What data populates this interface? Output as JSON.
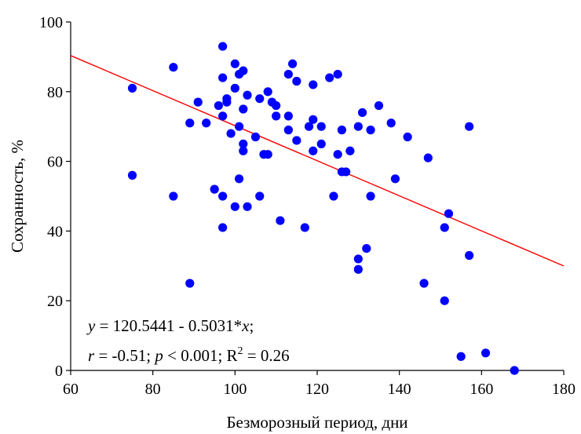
{
  "chart_data": {
    "type": "scatter",
    "xlabel": "Безморозный период, дни",
    "ylabel": "Сохранность, %",
    "xlim": [
      60,
      180
    ],
    "ylim": [
      0,
      100
    ],
    "xticks": [
      "60",
      "80",
      "100",
      "120",
      "140",
      "160",
      "180"
    ],
    "yticks": [
      "0",
      "20",
      "40",
      "60",
      "80",
      "100"
    ],
    "grid": false,
    "point_color": "#0000ff",
    "line_color": "#ff0000",
    "regression": {
      "intercept": 120.5441,
      "slope": -0.5031
    },
    "equation": {
      "line1": {
        "y": "y",
        "eq": " = 120.5441 - 0.5031*",
        "x": "x",
        "end": ";"
      },
      "line2": {
        "r": "r",
        "r_val": " = -0.51; ",
        "p": "p",
        "p_val": " < 0.001; R",
        "sup": "2",
        "r2_val": " = 0.26"
      }
    },
    "points": [
      [
        75,
        81
      ],
      [
        75,
        56
      ],
      [
        85,
        87
      ],
      [
        85,
        50
      ],
      [
        89,
        71
      ],
      [
        89,
        25
      ],
      [
        91,
        77
      ],
      [
        93,
        71
      ],
      [
        95,
        52
      ],
      [
        96,
        76
      ],
      [
        97,
        93
      ],
      [
        97,
        84
      ],
      [
        97,
        73
      ],
      [
        97,
        50
      ],
      [
        97,
        41
      ],
      [
        98,
        78
      ],
      [
        98,
        77
      ],
      [
        99,
        68
      ],
      [
        100,
        88
      ],
      [
        100,
        81
      ],
      [
        100,
        47
      ],
      [
        101,
        85
      ],
      [
        101,
        70
      ],
      [
        101,
        55
      ],
      [
        102,
        86
      ],
      [
        102,
        75
      ],
      [
        102,
        65
      ],
      [
        102,
        63
      ],
      [
        103,
        79
      ],
      [
        103,
        47
      ],
      [
        105,
        67
      ],
      [
        106,
        78
      ],
      [
        106,
        50
      ],
      [
        107,
        62
      ],
      [
        108,
        80
      ],
      [
        108,
        62
      ],
      [
        109,
        77
      ],
      [
        110,
        76
      ],
      [
        110,
        73
      ],
      [
        111,
        43
      ],
      [
        113,
        85
      ],
      [
        113,
        73
      ],
      [
        113,
        69
      ],
      [
        114,
        88
      ],
      [
        115,
        83
      ],
      [
        115,
        66
      ],
      [
        117,
        41
      ],
      [
        118,
        70
      ],
      [
        119,
        82
      ],
      [
        119,
        72
      ],
      [
        119,
        63
      ],
      [
        121,
        70
      ],
      [
        121,
        65
      ],
      [
        123,
        84
      ],
      [
        124,
        50
      ],
      [
        125,
        85
      ],
      [
        125,
        62
      ],
      [
        126,
        69
      ],
      [
        126,
        57
      ],
      [
        127,
        57
      ],
      [
        128,
        63
      ],
      [
        130,
        70
      ],
      [
        130,
        32
      ],
      [
        130,
        29
      ],
      [
        131,
        74
      ],
      [
        132,
        35
      ],
      [
        133,
        69
      ],
      [
        133,
        50
      ],
      [
        135,
        76
      ],
      [
        138,
        71
      ],
      [
        139,
        55
      ],
      [
        142,
        67
      ],
      [
        146,
        25
      ],
      [
        147,
        61
      ],
      [
        151,
        41
      ],
      [
        151,
        20
      ],
      [
        152,
        45
      ],
      [
        155,
        4
      ],
      [
        157,
        70
      ],
      [
        157,
        33
      ],
      [
        161,
        5
      ],
      [
        168,
        0
      ]
    ]
  }
}
